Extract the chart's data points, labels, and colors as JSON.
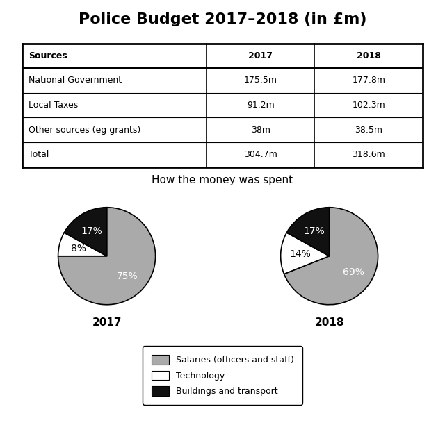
{
  "title": "Police Budget 2017–2018 (in £m)",
  "table": {
    "headers": [
      "Sources",
      "2017",
      "2018"
    ],
    "rows": [
      [
        "National Government",
        "175.5m",
        "177.8m"
      ],
      [
        "Local Taxes",
        "91.2m",
        "102.3m"
      ],
      [
        "Other sources (eg grants)",
        "38m",
        "38.5m"
      ],
      [
        "Total",
        "304.7m",
        "318.6m"
      ]
    ]
  },
  "pie_title": "How the money was spent",
  "pie_2017": {
    "label": "2017",
    "values": [
      75,
      8,
      17
    ],
    "labels": [
      "75%",
      "8%",
      "17%"
    ],
    "colors": [
      "#aaaaaa",
      "#ffffff",
      "#111111"
    ],
    "startangle": 90
  },
  "pie_2018": {
    "label": "2018",
    "values": [
      69,
      14,
      17
    ],
    "labels": [
      "69%",
      "14%",
      "17%"
    ],
    "colors": [
      "#aaaaaa",
      "#ffffff",
      "#111111"
    ],
    "startangle": 90
  },
  "legend_labels": [
    "Salaries (officers and staff)",
    "Technology",
    "Buildings and transport"
  ],
  "legend_colors": [
    "#aaaaaa",
    "#ffffff",
    "#111111"
  ],
  "bg_color": "#ffffff",
  "title_fontsize": 16,
  "table_fontsize": 9,
  "pie_label_fontsize": 10,
  "pie_title_fontsize": 11,
  "year_label_fontsize": 11,
  "legend_fontsize": 9
}
